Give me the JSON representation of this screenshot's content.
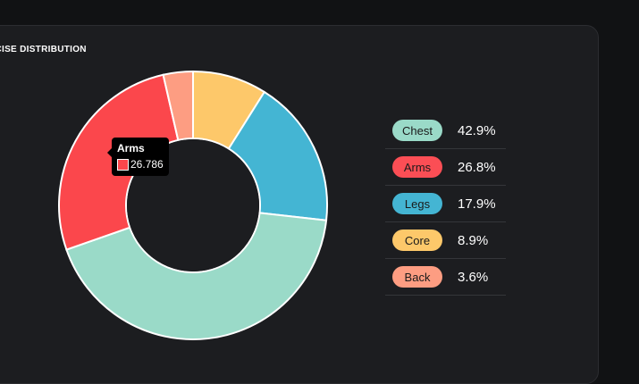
{
  "card": {
    "title": "ERCISE DISTRIBUTION"
  },
  "chart_data": {
    "type": "pie",
    "categories": [
      "Chest",
      "Arms",
      "Legs",
      "Core",
      "Back"
    ],
    "values": [
      42.857,
      26.786,
      17.857,
      8.929,
      3.571
    ],
    "colors": [
      "#9adac8",
      "#fb474c",
      "#44b5d3",
      "#fdc86a",
      "#fd9d82"
    ],
    "donut": true
  },
  "tooltip": {
    "title": "Arms",
    "value": "26.786",
    "color": "#fb474c"
  },
  "legend": [
    {
      "label": "Chest",
      "percent": "42.9%",
      "color": "#9adac8"
    },
    {
      "label": "Arms",
      "percent": "26.8%",
      "color": "#fb4e55"
    },
    {
      "label": "Legs",
      "percent": "17.9%",
      "color": "#44b5d3"
    },
    {
      "label": "Core",
      "percent": "8.9%",
      "color": "#fdc86a"
    },
    {
      "label": "Back",
      "percent": "3.6%",
      "color": "#fd9d82"
    }
  ]
}
